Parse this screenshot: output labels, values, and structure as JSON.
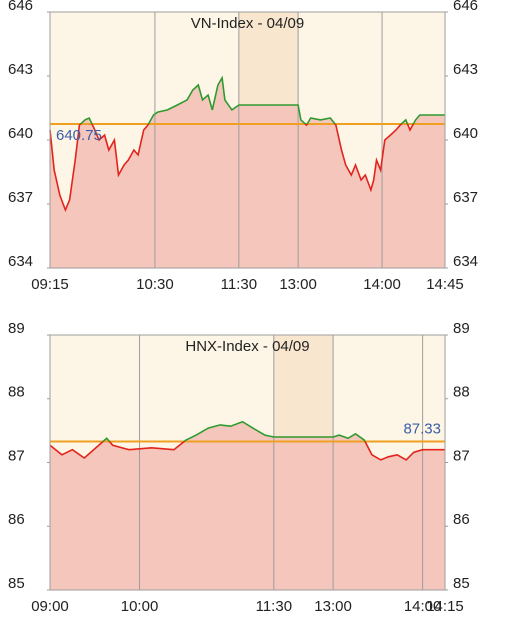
{
  "chart_data": [
    {
      "type": "line",
      "title": "VN-Index - 04/09",
      "x": [
        555,
        558,
        562,
        566,
        569,
        573,
        576,
        580,
        583,
        587,
        590,
        594,
        597,
        601,
        604,
        608,
        611,
        615,
        618,
        622,
        625,
        629,
        632,
        639,
        646,
        653,
        657,
        661,
        664,
        668,
        671,
        675,
        678,
        680,
        685,
        690,
        780,
        782,
        786,
        789,
        796,
        803,
        807,
        811,
        814,
        818,
        821,
        825,
        828,
        832,
        834,
        836,
        839,
        842,
        846,
        850,
        853,
        857,
        860,
        864,
        867,
        871,
        885
      ],
      "values": [
        640.47,
        638.59,
        637.42,
        636.72,
        637.19,
        639.06,
        640.7,
        640.94,
        641.03,
        640.47,
        640.0,
        640.23,
        639.53,
        640.0,
        638.36,
        638.83,
        639.06,
        639.53,
        639.3,
        640.47,
        640.7,
        641.17,
        641.31,
        641.41,
        641.64,
        641.88,
        642.34,
        642.58,
        641.88,
        642.11,
        641.41,
        642.58,
        642.91,
        641.88,
        641.41,
        641.64,
        641.64,
        640.94,
        640.7,
        641.03,
        640.94,
        641.03,
        640.7,
        639.53,
        638.83,
        638.36,
        638.83,
        638.13,
        638.36,
        637.66,
        638.13,
        639.06,
        638.59,
        640.0,
        640.23,
        640.47,
        640.7,
        640.94,
        640.47,
        640.94,
        641.17,
        641.17,
        641.17
      ],
      "reference": 640.75,
      "xlim": [
        555,
        885
      ],
      "xticks": [
        {
          "value": 555,
          "label": "09:15"
        },
        {
          "value": 630,
          "label": "10:30"
        },
        {
          "value": 690,
          "label": "11:30"
        },
        {
          "value": 780,
          "label": "13:00"
        },
        {
          "value": 840,
          "label": "14:00"
        },
        {
          "value": 885,
          "label": "14:45"
        }
      ],
      "ylim": [
        634,
        646
      ],
      "yticks": [
        634,
        637,
        640,
        643,
        646
      ],
      "break": [
        690,
        780
      ],
      "color_up": "#2f9a2f",
      "color_down": "#e3231c",
      "reference_color": "#f0a020"
    },
    {
      "type": "line",
      "title": "HNX-Index - 04/09",
      "x": [
        540,
        548,
        555,
        563,
        578,
        582,
        593,
        608,
        623,
        631,
        638,
        646,
        654,
        661,
        669,
        676,
        684,
        690,
        780,
        784,
        790,
        795,
        801,
        806,
        812,
        817,
        823,
        829,
        834,
        840,
        855
      ],
      "values": [
        87.27,
        87.12,
        87.2,
        87.07,
        87.38,
        87.27,
        87.2,
        87.23,
        87.2,
        87.35,
        87.43,
        87.54,
        87.59,
        87.57,
        87.64,
        87.54,
        87.43,
        87.4,
        87.4,
        87.43,
        87.38,
        87.45,
        87.35,
        87.12,
        87.04,
        87.09,
        87.12,
        87.04,
        87.16,
        87.2,
        87.2
      ],
      "reference": 87.33,
      "xlim": [
        540,
        855
      ],
      "xticks": [
        {
          "value": 540,
          "label": "09:00"
        },
        {
          "value": 600,
          "label": "10:00"
        },
        {
          "value": 690,
          "label": "11:30"
        },
        {
          "value": 780,
          "label": "13:00"
        },
        {
          "value": 840,
          "label": "14:00"
        },
        {
          "value": 855,
          "label": "14:15"
        }
      ],
      "ylim": [
        85,
        89
      ],
      "yticks": [
        85,
        86,
        87,
        88,
        89
      ],
      "break": [
        690,
        780
      ],
      "color_up": "#2f9a2f",
      "color_down": "#e3231c",
      "reference_color": "#f0a020"
    }
  ]
}
